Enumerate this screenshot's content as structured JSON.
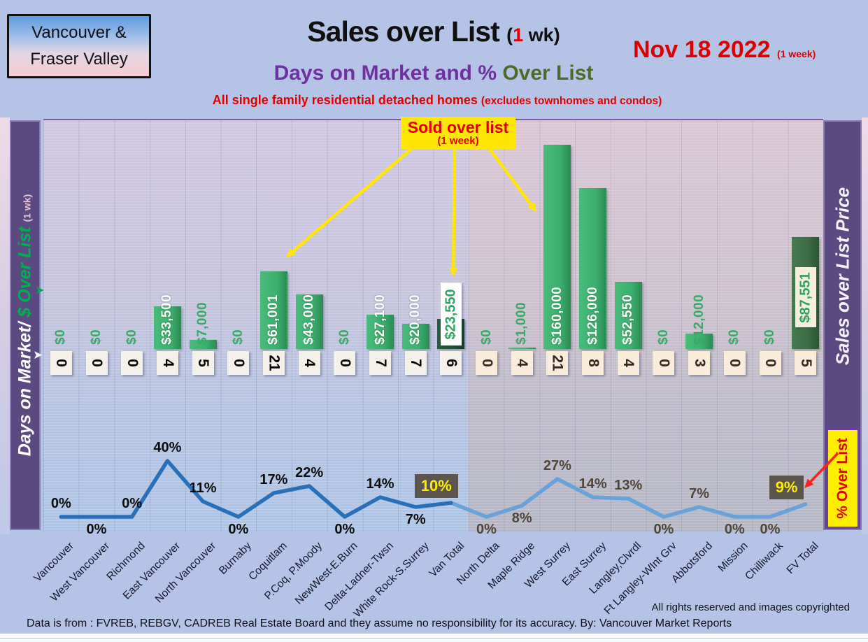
{
  "header": {
    "region_line1": "Vancouver &",
    "region_line2": "Fraser Valley",
    "title": "Sales over List",
    "title_suffix_pre": "(",
    "title_suffix_num": "1",
    "title_suffix_post": " wk)",
    "subtitle_part1": "Days on Market and % ",
    "subtitle_part2": "Over List",
    "tagline_main": "All single family residential detached homes ",
    "tagline_paren": "(excludes townhomes and condos)",
    "date": "Nov 18  2022",
    "date_suffix": "(1 week)"
  },
  "left_axis": {
    "label_part1": "Days on Market/ ",
    "label_part2": "$ Over List ",
    "label_part3": "(1 wk)"
  },
  "right_axis": {
    "label": "Sales over List Price",
    "pct_label": "% Over List"
  },
  "callout": {
    "line1": "Sold over list",
    "line2": "(1 week)"
  },
  "footer": {
    "line1": "All rights reserved and  images copyrighted",
    "line2": "Data is from : FVREB, REBGV, CADREB Real Estate Board and they assume no responsibility for its accuracy. By: Vancouver Market Reports"
  },
  "chart_data": {
    "type": "bar+line",
    "title": "Sales over List (1 wk)",
    "subtitle": "Days on Market and % Over List",
    "date": "Nov 18 2022 (1 week)",
    "categories": [
      "Vancouver",
      "West Vancouver",
      "Richmond",
      "East Vancouver",
      "North Vancouver",
      "Burnaby",
      "Coquitlam",
      "P.Coq, P.Moody",
      "NewWest-E.Burn",
      "Delta-Ladner-Twsn",
      "White Rock-S.Surrey",
      "Van Total",
      "North Delta",
      "Maple Ridge",
      "West Surrey",
      "East Surrey",
      "Langley,Clvrdl",
      "Ft Langley-WInt Grv",
      "Abbotsford",
      "Mission",
      "Chilliwack",
      "FV Total"
    ],
    "series": [
      {
        "name": "$ Over List (bars)",
        "type": "bar",
        "values": [
          0,
          0,
          0,
          33500,
          7000,
          0,
          61001,
          43000,
          0,
          27100,
          20000,
          23550,
          0,
          1000,
          160000,
          126000,
          52550,
          0,
          12000,
          0,
          0,
          87551
        ],
        "labels": [
          "$0",
          "$0",
          "$0",
          "$33,500",
          "$7,000",
          "$0",
          "$61,001",
          "$43,000",
          "$0",
          "$27,100",
          "$20,000",
          "$23,550",
          "$0",
          "$1,000",
          "$160,000",
          "$126,000",
          "$52,550",
          "$0",
          "$12,000",
          "$0",
          "$0",
          "$87,551"
        ]
      },
      {
        "name": "Days on Market (boxes)",
        "type": "table",
        "values": [
          0,
          0,
          0,
          4,
          5,
          0,
          21,
          4,
          0,
          7,
          7,
          6,
          0,
          4,
          21,
          8,
          4,
          0,
          3,
          0,
          0,
          5
        ]
      },
      {
        "name": "% Over List (line)",
        "type": "line",
        "values": [
          0,
          0,
          0,
          40,
          11,
          0,
          17,
          22,
          0,
          14,
          7,
          10,
          0,
          8,
          27,
          14,
          13,
          0,
          7,
          0,
          0,
          9
        ],
        "labels": [
          "0%",
          "0%",
          "0%",
          "40%",
          "11%",
          "0%",
          "17%",
          "22%",
          "0%",
          "14%",
          "7%",
          "10%",
          "0%",
          "8%",
          "27%",
          "14%",
          "13%",
          "0%",
          "7%",
          "0%",
          "0%",
          "9%"
        ],
        "label_positions": [
          "above",
          "below",
          "above",
          "above",
          "above",
          "below",
          "above",
          "above",
          "below",
          "above",
          "below",
          "above",
          "below",
          "below",
          "above",
          "above",
          "above",
          "below",
          "above",
          "below",
          "below",
          "above"
        ]
      }
    ],
    "regions": {
      "vancouver_columns": [
        0,
        11
      ],
      "fraser_valley_columns": [
        12,
        21
      ],
      "total_columns": [
        11,
        21
      ]
    },
    "ylim_dollars": [
      0,
      175000
    ],
    "ylim_percent": [
      0,
      45
    ],
    "gridlines": true,
    "legend": "none",
    "colors": {
      "bar": "#3cae6e",
      "bar_total_van": "#1b5231",
      "bar_total_fv": "#3c6c45",
      "line_van": "#2a70b8",
      "line_fv": "#69a2d9",
      "pct_box_bg": "#5b554e",
      "pct_box_text": "#fdee00",
      "callout_bg": "#ffe607",
      "callout_text": "#e00000",
      "sidebar": "#5b4982"
    }
  }
}
